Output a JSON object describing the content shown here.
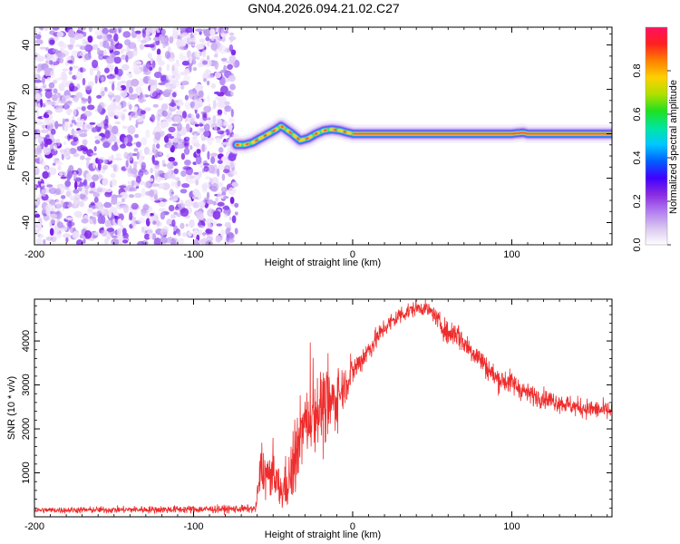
{
  "title": "GN04.2026.094.21.02.C27",
  "chart_data": [
    {
      "type": "heatmap",
      "xlabel": "Height of straight line (km)",
      "ylabel": "Frequency (Hz)",
      "xlim": [
        -200,
        163
      ],
      "ylim": [
        -50,
        48
      ],
      "xticks": [
        -200,
        -100,
        0,
        100
      ],
      "xtick_labels": [
        "-200",
        "-100",
        "0",
        "100"
      ],
      "yticks": [
        -40,
        -20,
        0,
        20,
        40
      ],
      "ytick_labels": [
        "-40",
        "-20",
        "0",
        "20",
        "40"
      ],
      "noise_region_x": [
        -200,
        -73
      ],
      "trace": {
        "x": [
          -73,
          -68,
          -63,
          -58,
          -53,
          -48,
          -45,
          -42,
          -38,
          -33,
          -28,
          -23,
          -18,
          -13,
          -8,
          -3,
          0,
          20,
          60,
          100,
          107,
          110,
          140,
          163
        ],
        "freq": [
          -5,
          -5,
          -4,
          -2,
          0,
          2,
          3.5,
          2,
          0,
          -3,
          -2,
          0,
          1.5,
          2,
          1.5,
          0.5,
          0,
          0,
          0,
          0,
          0.5,
          0,
          0,
          0
        ]
      },
      "colorbar": {
        "label": "Normalized spectral amplitude",
        "range": [
          0.0,
          1.0
        ],
        "ticks": [
          0.0,
          0.2,
          0.4,
          0.6,
          0.8
        ],
        "tick_labels": [
          "0.0",
          "0.2",
          "0.4",
          "0.6",
          "0.8"
        ],
        "colors": [
          "#ffffff",
          "#d9c6f0",
          "#b27cf0",
          "#8a2be2",
          "#3f00ff",
          "#0060ff",
          "#00c8ff",
          "#00e6a0",
          "#20e020",
          "#b0e000",
          "#ffd000",
          "#ff8000",
          "#ff2020",
          "#ff1060"
        ]
      }
    },
    {
      "type": "line",
      "xlabel": "Height of straight line (km)",
      "ylabel": "SNR (10 * v/v)",
      "xlim": [
        -200,
        163
      ],
      "ylim": [
        0,
        4950
      ],
      "xticks": [
        -200,
        -100,
        0,
        100
      ],
      "xtick_labels": [
        "-200",
        "-100",
        "0",
        "100"
      ],
      "yticks": [
        1000,
        2000,
        3000,
        4000
      ],
      "ytick_labels": [
        "1000",
        "2000",
        "3000",
        "4000"
      ],
      "color": "#ee2c2c",
      "envelope": {
        "x": [
          -200,
          -150,
          -100,
          -80,
          -61,
          -58,
          -50,
          -45,
          -38,
          -33,
          -28,
          -22,
          -18,
          -10,
          -5,
          0,
          10,
          20,
          30,
          40,
          45,
          50,
          60,
          65,
          70,
          80,
          90,
          100,
          110,
          120,
          130,
          140,
          150,
          163
        ],
        "mean": [
          150,
          160,
          170,
          175,
          180,
          1000,
          900,
          550,
          1000,
          1900,
          2200,
          2500,
          2400,
          2700,
          3000,
          3300,
          3800,
          4300,
          4600,
          4750,
          4750,
          4650,
          4150,
          4200,
          3950,
          3600,
          3150,
          3050,
          2800,
          2700,
          2600,
          2500,
          2450,
          2400
        ],
        "spread": [
          60,
          70,
          80,
          80,
          80,
          500,
          500,
          400,
          700,
          700,
          700,
          800,
          900,
          600,
          400,
          300,
          250,
          200,
          200,
          150,
          150,
          150,
          250,
          300,
          250,
          250,
          250,
          250,
          200,
          200,
          200,
          200,
          200,
          200
        ]
      }
    }
  ]
}
